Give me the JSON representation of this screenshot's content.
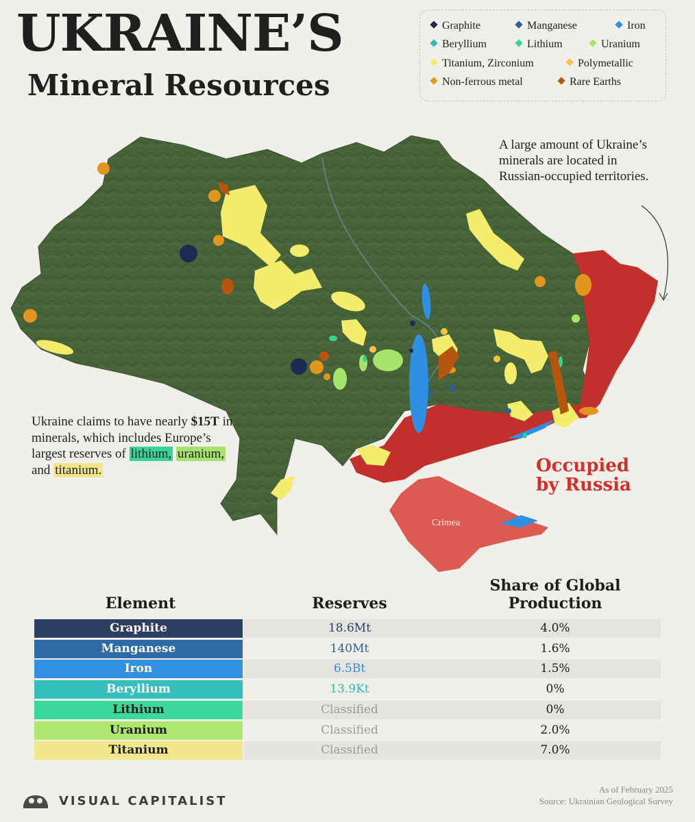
{
  "header": {
    "title_line1": "UKRAINE’S",
    "title_line2": "Mineral Resources"
  },
  "legend": {
    "items": [
      {
        "label": "Graphite",
        "color": "#1c2a52"
      },
      {
        "label": "Manganese",
        "color": "#2e5f96"
      },
      {
        "label": "Iron",
        "color": "#2f8fe0"
      },
      {
        "label": "Beryllium",
        "color": "#2eb9b4"
      },
      {
        "label": "Lithium",
        "color": "#35d494"
      },
      {
        "label": "Uranium",
        "color": "#a6e36a"
      },
      {
        "label": "Titanium, Zirconium",
        "color": "#f4ec6c"
      },
      {
        "label": "Polymetallic",
        "color": "#f3c44a"
      },
      {
        "label": "Non-ferrous metal",
        "color": "#e2961d"
      },
      {
        "label": "Rare Earths",
        "color": "#b5560f"
      }
    ]
  },
  "map": {
    "annotation_occupied_minerals": "A large amount of Ukraine’s minerals are located in Russian-occupied territories.",
    "claim_text_part1": "Ukraine claims to have nearly ",
    "claim_value": "$15T",
    "claim_text_part2": " in minerals, which includes Europe’s largest reserves of ",
    "claim_lithium": "lithium,",
    "claim_uranium": "uranium,",
    "claim_and": " and ",
    "claim_titanium": "titanium.",
    "occupied_label_line1": "Occupied",
    "occupied_label_line2": "by Russia",
    "crimea_label": "Crimea",
    "colors": {
      "territory": "#46633a",
      "occupied": "#c2302b",
      "crimea": "#dc5a50"
    }
  },
  "table": {
    "headers": {
      "element": "Element",
      "reserves": "Reserves",
      "share_line1": "Share of Global",
      "share_line2": "Production"
    },
    "rows": [
      {
        "element": "Graphite",
        "reserves": "18.6Mt",
        "share": "4.0%",
        "color": "#2d3e64",
        "text_color": "#ffffff",
        "reserves_color": "#2d3e64"
      },
      {
        "element": "Manganese",
        "reserves": "140Mt",
        "share": "1.6%",
        "color": "#2e6aa6",
        "text_color": "#ffffff",
        "reserves_color": "#2e5f96"
      },
      {
        "element": "Iron",
        "reserves": "6.5Bt",
        "share": "1.5%",
        "color": "#3191e0",
        "text_color": "#ffffff",
        "reserves_color": "#2f8fe0"
      },
      {
        "element": "Beryllium",
        "reserves": "13.9Kt",
        "share": "0%",
        "color": "#33c0bd",
        "text_color": "#ffffff",
        "reserves_color": "#2eb9b4"
      },
      {
        "element": "Lithium",
        "reserves": "Classified",
        "share": "0%",
        "color": "#3ad99a",
        "text_color": "#1d1d1d",
        "reserves_color": "#9a9a9a"
      },
      {
        "element": "Uranium",
        "reserves": "Classified",
        "share": "2.0%",
        "color": "#aee86f",
        "text_color": "#1d1d1d",
        "reserves_color": "#9a9a9a"
      },
      {
        "element": "Titanium",
        "reserves": "Classified",
        "share": "7.0%",
        "color": "#f2e78a",
        "text_color": "#1d1d1d",
        "reserves_color": "#9a9a9a"
      }
    ]
  },
  "footer": {
    "brand": "VISUAL CAPITALIST",
    "as_of": "As of February 2025",
    "source": "Source: Ukrainian Geological Survey"
  }
}
